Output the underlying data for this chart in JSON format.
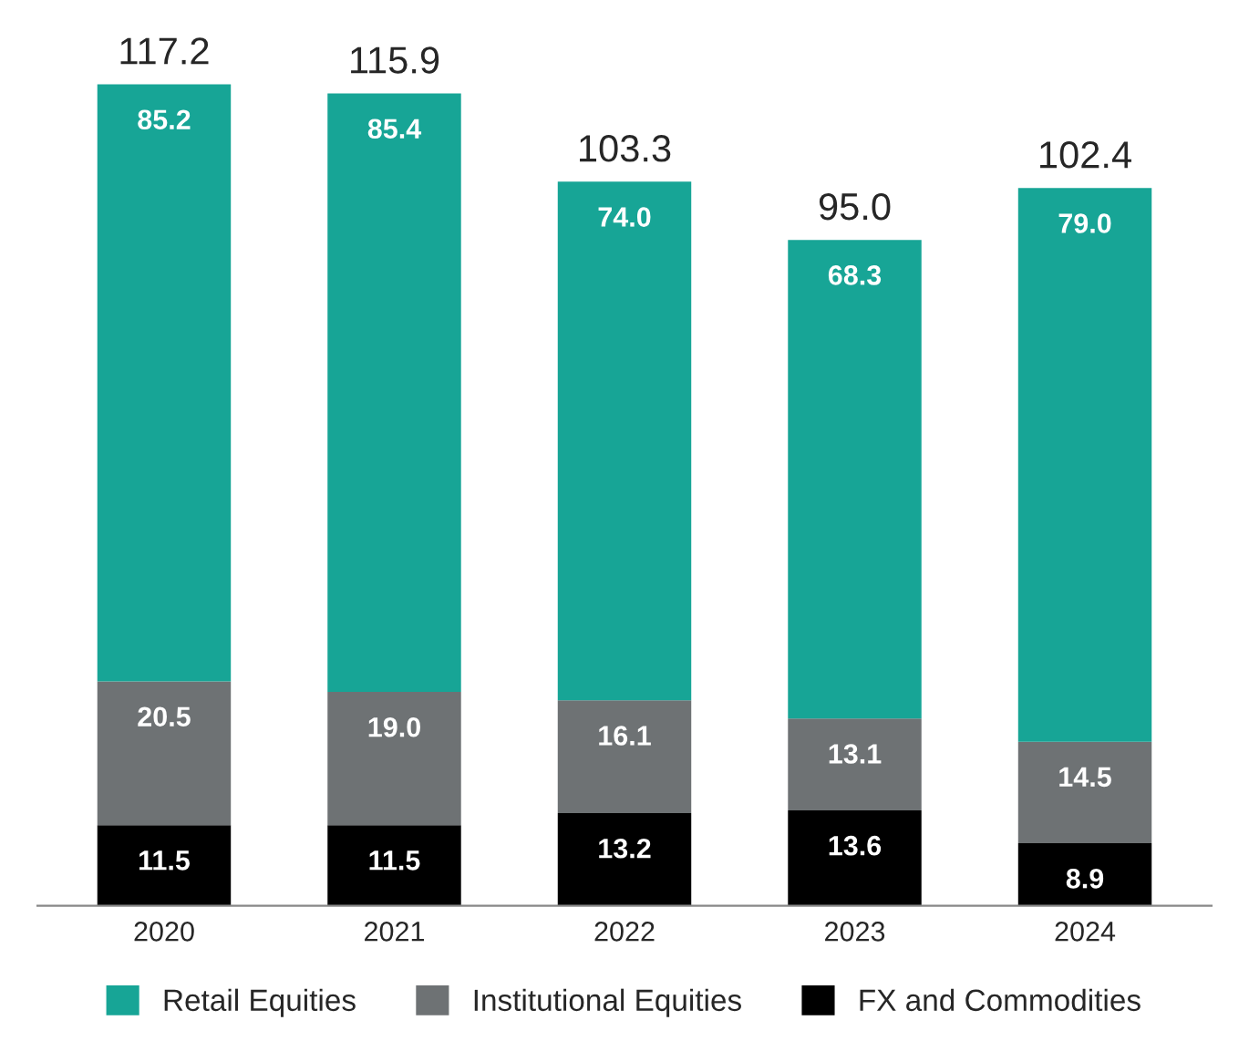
{
  "chart_data": {
    "type": "bar",
    "stacked": true,
    "categories": [
      "2020",
      "2021",
      "2022",
      "2023",
      "2024"
    ],
    "series": [
      {
        "name": "FX and Commodities",
        "color": "#000000",
        "values": [
          11.5,
          11.5,
          13.2,
          13.6,
          8.9
        ],
        "value_labels": [
          "11.5",
          "11.5",
          "13.2",
          "13.6",
          "8.9"
        ]
      },
      {
        "name": "Institutional Equities",
        "color": "#6e7274",
        "values": [
          20.5,
          19.0,
          16.1,
          13.1,
          14.5
        ],
        "value_labels": [
          "20.5",
          "19.0",
          "16.1",
          "13.1",
          "14.5"
        ]
      },
      {
        "name": "Retail Equities",
        "color": "#17a596",
        "values": [
          85.2,
          85.4,
          74.0,
          68.3,
          79.0
        ],
        "value_labels": [
          "85.2",
          "85.4",
          "74.0",
          "68.3",
          "79.0"
        ]
      }
    ],
    "totals": [
      "117.2",
      "115.9",
      "103.3",
      "95.0",
      "102.4"
    ],
    "legend": "bottom",
    "grid": false
  }
}
